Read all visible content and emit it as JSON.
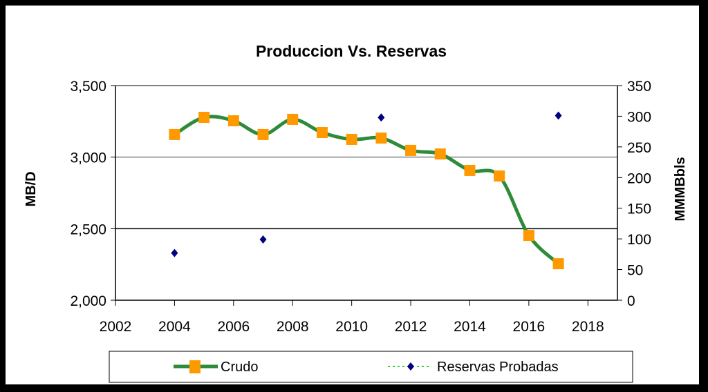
{
  "chart_data": {
    "type": "line",
    "title": "Produccion Vs. Reservas",
    "xlabel": "",
    "ylabel": "MB/D",
    "y2label": "MMMBbls",
    "xlim": [
      2002,
      2019
    ],
    "ylim": [
      2000,
      3500
    ],
    "y2lim": [
      0,
      350
    ],
    "x_ticks": [
      "2002",
      "2004",
      "2006",
      "2008",
      "2010",
      "2012",
      "2014",
      "2016",
      "2018"
    ],
    "y_ticks": [
      "2,000",
      "2,500",
      "3,000",
      "3,500"
    ],
    "y2_ticks": [
      "0",
      "50",
      "100",
      "150",
      "200",
      "250",
      "300",
      "350"
    ],
    "grid": "horizontal",
    "legend_position": "bottom",
    "series": [
      {
        "name": "Crudo",
        "axis": "left",
        "color": "#2e8b3a",
        "marker_color": "#ff9900",
        "marker": "square",
        "x": [
          2004,
          2005,
          2006,
          2007,
          2008,
          2009,
          2010,
          2011,
          2012,
          2013,
          2014,
          2015,
          2016,
          2017
        ],
        "values": [
          3158,
          3278,
          3254,
          3158,
          3264,
          3172,
          3124,
          3133,
          3047,
          3022,
          2907,
          2868,
          2453,
          2255
        ]
      },
      {
        "name": "Reservas Probadas",
        "axis": "right",
        "color": "#000080",
        "line_color": "#33cc33",
        "marker": "diamond",
        "x": [
          2004,
          2007,
          2011,
          2017
        ],
        "values": [
          77,
          99,
          298,
          301
        ]
      }
    ]
  }
}
